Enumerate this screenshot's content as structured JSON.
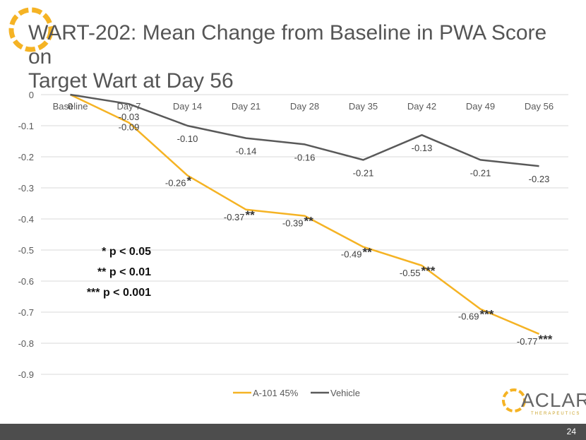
{
  "slide": {
    "title_line1": "WART-202: Mean Change from Baseline in PWA Score on",
    "title_line2": "Target Wart at Day 56",
    "page_number": "24"
  },
  "significance": {
    "lines": [
      "* p < 0.05",
      "** p < 0.01",
      "*** p < 0.001"
    ]
  },
  "brand": {
    "name": "ACLARIS",
    "subtitle": "THERAPEUTICS"
  },
  "colors": {
    "a101": "#F5B324",
    "vehicle": "#595959",
    "grid": "#d9d9d9",
    "axis_text": "#595959",
    "footer": "#4d4d4d"
  },
  "chart_data": {
    "type": "line",
    "title": "",
    "xlabel": "",
    "ylabel": "",
    "categories": [
      "Baseline",
      "Day 7",
      "Day 14",
      "Day 21",
      "Day 28",
      "Day 35",
      "Day 42",
      "Day 49",
      "Day 56"
    ],
    "ylim": [
      -0.9,
      0
    ],
    "yticks": [
      "0",
      "-0.1",
      "-0.2",
      "-0.3",
      "-0.4",
      "-0.5",
      "-0.6",
      "-0.7",
      "-0.8",
      "-0.9"
    ],
    "grid": true,
    "legend_position": "bottom",
    "series": [
      {
        "name": "A-101 45%",
        "values": [
          0,
          -0.09,
          -0.26,
          -0.37,
          -0.39,
          -0.49,
          -0.55,
          -0.69,
          -0.77
        ],
        "labels": [
          "",
          "-0.09",
          "-0.26",
          "-0.37",
          "-0.39",
          "-0.49",
          "-0.55",
          "-0.69",
          "-0.77"
        ],
        "stars": [
          "",
          "",
          "*",
          "**",
          "**",
          "**",
          "***",
          "***",
          "***"
        ]
      },
      {
        "name": "Vehicle",
        "values": [
          0,
          -0.03,
          -0.1,
          -0.14,
          -0.16,
          -0.21,
          -0.13,
          -0.21,
          -0.23
        ],
        "labels": [
          "0",
          "-0.03",
          "-0.10",
          "-0.14",
          "-0.16",
          "-0.21",
          "-0.13",
          "-0.21",
          "-0.23"
        ]
      }
    ]
  }
}
